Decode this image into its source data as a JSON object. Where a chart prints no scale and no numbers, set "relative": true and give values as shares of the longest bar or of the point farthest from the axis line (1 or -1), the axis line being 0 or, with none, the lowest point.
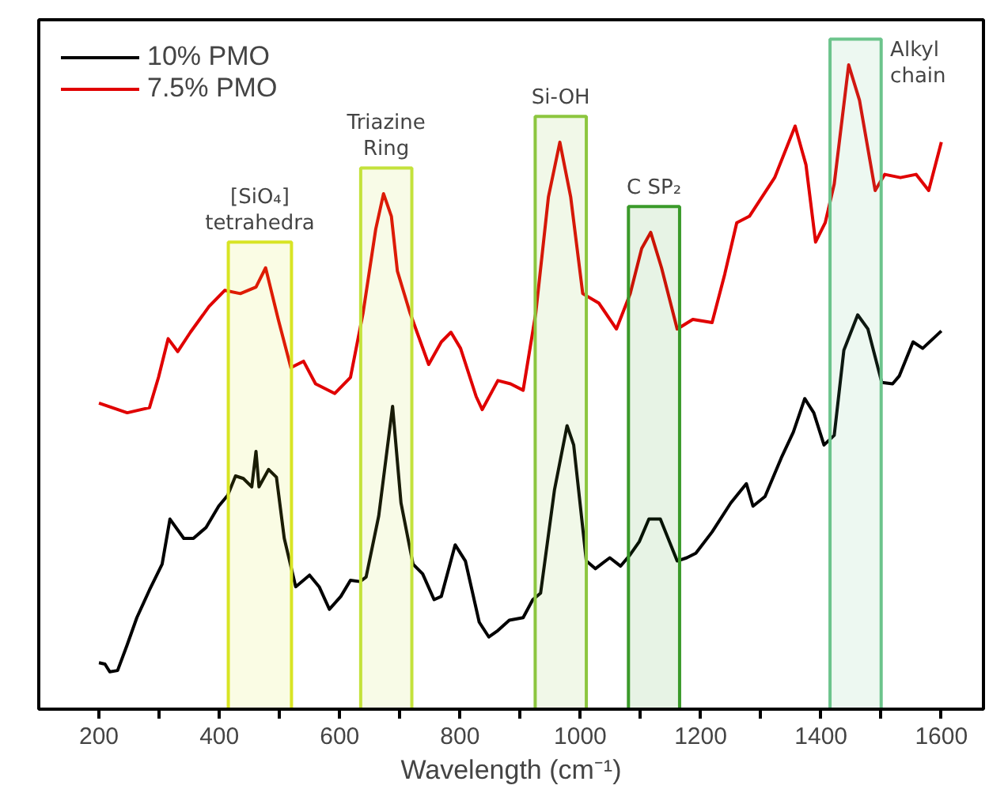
{
  "chart_data": {
    "type": "line",
    "relative": true,
    "xlabel": "Wavelength (cm⁻¹)",
    "legend": "top left",
    "tick_labels": "x",
    "grid": false,
    "line_style": "solid",
    "xlim": [
      100,
      1670
    ],
    "xticks": [
      200,
      {
        "value": 300,
        "label": null
      },
      400,
      {
        "value": 500,
        "label": null
      },
      600,
      {
        "value": 700,
        "label": null
      },
      800,
      {
        "value": 900,
        "label": null
      },
      1000,
      {
        "value": 1100,
        "label": null
      },
      1200,
      {
        "value": 1300,
        "label": null
      },
      1400,
      {
        "value": 1500,
        "label": null
      },
      1600
    ],
    "series": [
      {
        "name": "10% PMO",
        "color": "#000000",
        "x": [
          200,
          210,
          218,
          231,
          247,
          263,
          284,
          305,
          318,
          341,
          357,
          378,
          399,
          414,
          427,
          440,
          454,
          461,
          466,
          482,
          495,
          508,
          527,
          550,
          566,
          583,
          602,
          618,
          634,
          644,
          665,
          688,
          702,
          722,
          738,
          757,
          769,
          792,
          809,
          832,
          848,
          863,
          882,
          905,
          921,
          934,
          957,
          978,
          989,
          1010,
          1025,
          1049,
          1067,
          1083,
          1098,
          1114,
          1133,
          1161,
          1177,
          1192,
          1219,
          1250,
          1276,
          1287,
          1307,
          1334,
          1354,
          1373,
          1388,
          1405,
          1422,
          1438,
          1461,
          1478,
          1501,
          1519,
          1530,
          1553,
          1569,
          1600
        ],
        "values": [
          0.072,
          0.07,
          0.058,
          0.06,
          0.1,
          0.142,
          0.185,
          0.225,
          0.295,
          0.265,
          0.265,
          0.282,
          0.315,
          0.332,
          0.362,
          0.358,
          0.345,
          0.4,
          0.345,
          0.372,
          0.36,
          0.265,
          0.19,
          0.208,
          0.19,
          0.155,
          0.175,
          0.2,
          0.198,
          0.205,
          0.3,
          0.47,
          0.32,
          0.225,
          0.21,
          0.17,
          0.175,
          0.255,
          0.23,
          0.135,
          0.112,
          0.122,
          0.138,
          0.142,
          0.17,
          0.18,
          0.34,
          0.44,
          0.41,
          0.23,
          0.218,
          0.235,
          0.222,
          0.24,
          0.26,
          0.295,
          0.295,
          0.23,
          0.235,
          0.242,
          0.275,
          0.32,
          0.35,
          0.315,
          0.33,
          0.39,
          0.43,
          0.482,
          0.46,
          0.41,
          0.425,
          0.557,
          0.612,
          0.59,
          0.507,
          0.505,
          0.517,
          0.57,
          0.56,
          0.587
        ]
      },
      {
        "name": "7.5% PMO",
        "color": "#e00000",
        "x": [
          200,
          247,
          284,
          299,
          315,
          331,
          352,
          383,
          409,
          435,
          461,
          477,
          498,
          519,
          540,
          560,
          592,
          618,
          639,
          660,
          673,
          686,
          696,
          717,
          748,
          769,
          785,
          801,
          827,
          837,
          863,
          884,
          905,
          926,
          947,
          966,
          984,
          1004,
          1031,
          1060,
          1083,
          1102,
          1117,
          1135,
          1161,
          1187,
          1219,
          1240,
          1260,
          1281,
          1302,
          1323,
          1357,
          1375,
          1391,
          1407,
          1422,
          1446,
          1464,
          1490,
          1506,
          1532,
          1558,
          1579,
          1600
        ],
        "values": [
          0.475,
          0.46,
          0.468,
          0.515,
          0.575,
          0.555,
          0.585,
          0.625,
          0.65,
          0.645,
          0.655,
          0.685,
          0.605,
          0.53,
          0.54,
          0.505,
          0.49,
          0.515,
          0.615,
          0.745,
          0.8,
          0.765,
          0.68,
          0.615,
          0.535,
          0.57,
          0.585,
          0.56,
          0.485,
          0.465,
          0.51,
          0.505,
          0.495,
          0.615,
          0.795,
          0.88,
          0.795,
          0.645,
          0.63,
          0.59,
          0.645,
          0.715,
          0.74,
          0.685,
          0.59,
          0.605,
          0.6,
          0.675,
          0.755,
          0.765,
          0.795,
          0.825,
          0.905,
          0.845,
          0.725,
          0.755,
          0.815,
          1.0,
          0.945,
          0.805,
          0.83,
          0.825,
          0.83,
          0.805,
          0.88
        ]
      }
    ],
    "bands": [
      {
        "axis": "x",
        "from": 415,
        "to": 520,
        "label": "[SiO₄]\ntetrahedra",
        "color": "#d8e424"
      },
      {
        "axis": "x",
        "from": 635,
        "to": 720,
        "label": "Triazine\nRing",
        "color": "#c4e23c"
      },
      {
        "axis": "x",
        "from": 925,
        "to": 1010,
        "label": "Si-OH",
        "color": "#8cc63f"
      },
      {
        "axis": "x",
        "from": 1080,
        "to": 1165,
        "label": "C SP₂",
        "color": "#3a9a2a"
      },
      {
        "axis": "x",
        "from": 1415,
        "to": 1500,
        "label": "Alkyl\nchain",
        "color": "#6cc48c"
      }
    ]
  }
}
